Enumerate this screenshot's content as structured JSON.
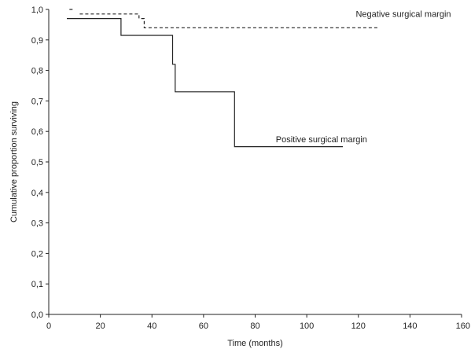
{
  "chart_data": {
    "type": "line",
    "title": "",
    "xlabel": "Time (months)",
    "ylabel": "Cumulative proportion surviving",
    "xlim": [
      0,
      160
    ],
    "ylim": [
      0,
      1
    ],
    "grid": false,
    "legend": "none",
    "x_ticks": [
      0,
      20,
      40,
      60,
      80,
      100,
      120,
      140,
      160
    ],
    "x_tick_labels": [
      "0",
      "20",
      "40",
      "60",
      "80",
      "100",
      "120",
      "140",
      "160"
    ],
    "y_ticks": [
      0,
      0.1,
      0.2,
      0.3,
      0.4,
      0.5,
      0.6,
      0.7,
      0.8,
      0.9,
      1.0
    ],
    "y_tick_labels": [
      "0,0",
      "0,1",
      "0,2",
      "0,3",
      "0,4",
      "0,5",
      "0,6",
      "0,7",
      "0,8",
      "0,9",
      "1,0"
    ],
    "series": [
      {
        "name": "Negative surgical margin",
        "style": "dashed",
        "color": "#222222",
        "step_points": [
          {
            "x": 8,
            "y": 1.0
          },
          {
            "x": 10,
            "y": 1.0
          },
          {
            "x": 12,
            "y": 0.985
          },
          {
            "x": 35,
            "y": 0.985
          },
          {
            "x": 35,
            "y": 0.97
          },
          {
            "x": 37,
            "y": 0.97
          },
          {
            "x": 37,
            "y": 0.955
          },
          {
            "x": 37,
            "y": 0.94
          },
          {
            "x": 128,
            "y": 0.94
          }
        ],
        "segments": [
          [
            [
              8,
              1.0
            ],
            [
              10,
              1.0
            ]
          ],
          [
            [
              12,
              0.985
            ],
            [
              35,
              0.985
            ],
            [
              35,
              0.97
            ],
            [
              37,
              0.97
            ],
            [
              37,
              0.94
            ],
            [
              128,
              0.94
            ]
          ]
        ]
      },
      {
        "name": "Positive surgical margin",
        "style": "solid",
        "color": "#222222",
        "step_points": [
          {
            "x": 7,
            "y": 0.97
          },
          {
            "x": 28,
            "y": 0.97
          },
          {
            "x": 28,
            "y": 0.915
          },
          {
            "x": 48,
            "y": 0.915
          },
          {
            "x": 48,
            "y": 0.82
          },
          {
            "x": 49,
            "y": 0.82
          },
          {
            "x": 49,
            "y": 0.73
          },
          {
            "x": 72,
            "y": 0.73
          },
          {
            "x": 72,
            "y": 0.55
          },
          {
            "x": 114,
            "y": 0.55
          }
        ]
      }
    ]
  }
}
